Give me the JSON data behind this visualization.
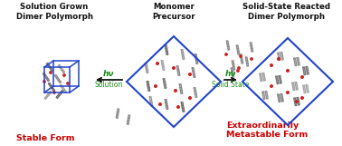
{
  "title_left": "Solution Grown\nDimer Polymorph",
  "title_mid": "Monomer\nPrecursor",
  "title_right": "Solid-State Reacted\nDimer Polymorph",
  "label_left": "Stable Form",
  "label_right": "Extraordinarily\nMetastable Form",
  "arrow1_hv": "hν",
  "arrow1_label": "Solution",
  "arrow2_hv": "hν",
  "arrow2_label": "Solid State",
  "bg_color": "#ffffff",
  "title_color": "#111111",
  "arrow_color": "#111111",
  "hv_color": "#1a8c1a",
  "label_color": "#cc0000",
  "box_color": "#2244cc",
  "bond_color_dark": "#333333",
  "bond_color_red": "#cc2222",
  "bond_color_light": "#aaaaaa"
}
